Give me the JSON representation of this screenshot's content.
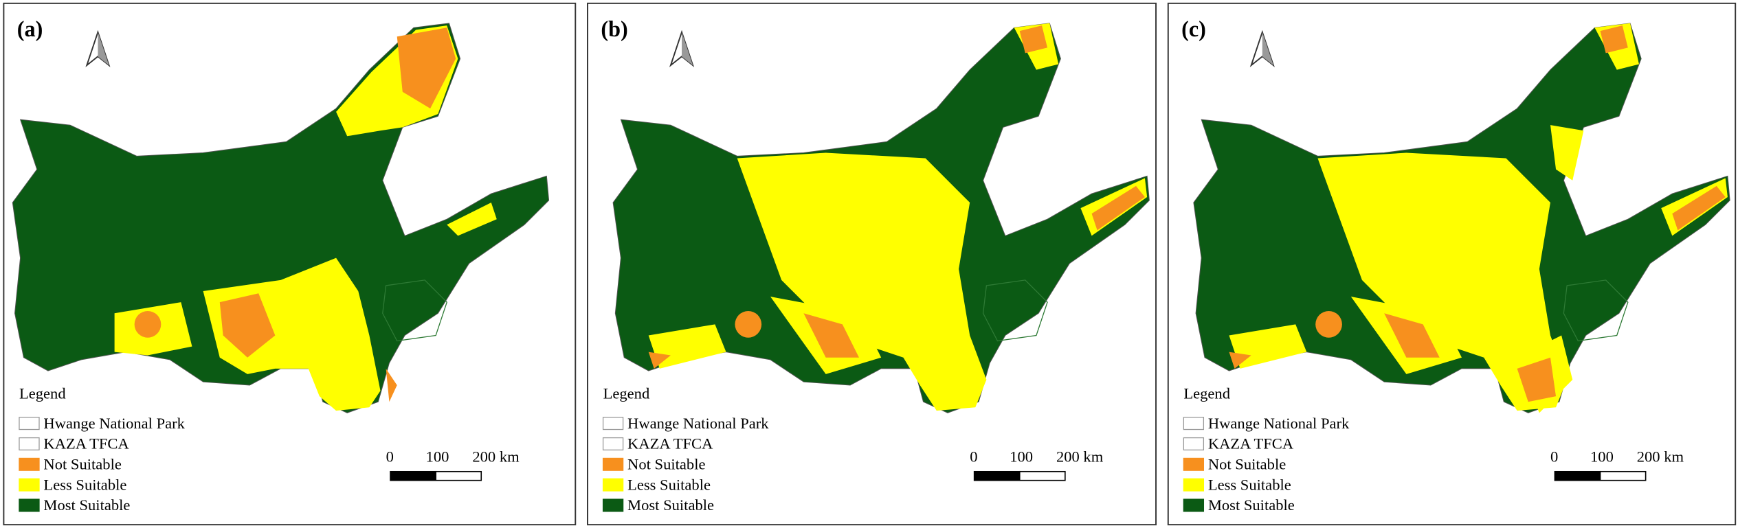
{
  "panels": [
    {
      "label": "(a)",
      "legend": {
        "title": "Legend",
        "items": [
          "Hwange National Park",
          "KAZA TFCA",
          "Not Suitable",
          "Less Suitable",
          "Most Suitable"
        ]
      },
      "scale_bar": [
        "0",
        "100",
        "200 km"
      ]
    },
    {
      "label": "(b)",
      "legend": {
        "title": "Legend",
        "items": [
          "Hwange National Park",
          "KAZA TFCA",
          "Not Suitable",
          "Less Suitable",
          "Most Suitable"
        ]
      },
      "scale_bar": [
        "0",
        "100",
        "200 km"
      ]
    },
    {
      "label": "(c)",
      "legend": {
        "title": "Legend",
        "items": [
          "Hwange National Park",
          "KAZA TFCA",
          "Not Suitable",
          "Less Suitable",
          "Most Suitable"
        ]
      },
      "scale_bar": [
        "0",
        "100",
        "200 km"
      ]
    }
  ]
}
